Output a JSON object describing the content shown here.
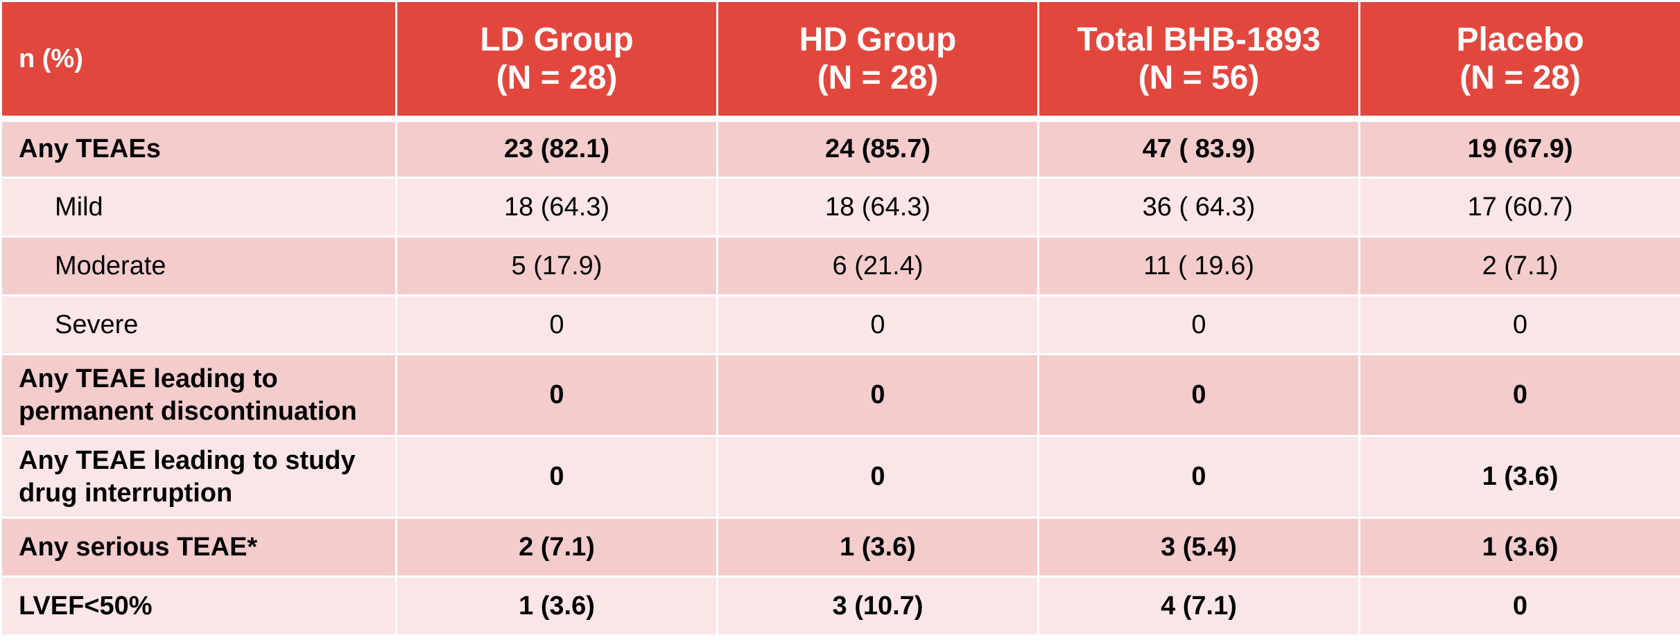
{
  "chart_data": {
    "type": "table",
    "header": {
      "row_label": "n (%)",
      "columns": [
        {
          "name": "LD Group",
          "n": "(N = 28)"
        },
        {
          "name": "HD Group",
          "n": "(N = 28)"
        },
        {
          "name": "Total BHB-1893",
          "n": "(N = 56)"
        },
        {
          "name": "Placebo",
          "n": "(N = 28)"
        }
      ]
    },
    "rows": [
      {
        "label": [
          "Any TEAEs"
        ],
        "values": [
          "23 (82.1)",
          "24 (85.7)",
          "47 ( 83.9)",
          "19 (67.9)"
        ]
      },
      {
        "label": [
          "Mild"
        ],
        "values": [
          "18 (64.3)",
          "18 (64.3)",
          "36 ( 64.3)",
          "17 (60.7)"
        ]
      },
      {
        "label": [
          "Moderate"
        ],
        "values": [
          "5 (17.9)",
          "6 (21.4)",
          "11 ( 19.6)",
          "2 (7.1)"
        ]
      },
      {
        "label": [
          "Severe"
        ],
        "values": [
          "0",
          "0",
          "0",
          "0"
        ]
      },
      {
        "label": [
          "Any TEAE leading to",
          "permanent discontinuation"
        ],
        "values": [
          "0",
          "0",
          "0",
          "0"
        ]
      },
      {
        "label": [
          "Any TEAE leading to study",
          "drug interruption"
        ],
        "values": [
          "0",
          "0",
          "0",
          "1 (3.6)"
        ]
      },
      {
        "label": [
          "Any serious TEAE*"
        ],
        "values": [
          "2 (7.1)",
          "1 (3.6)",
          "3 (5.4)",
          "1 (3.6)"
        ]
      },
      {
        "label": [
          "LVEF<50%"
        ],
        "values": [
          "1 (3.6)",
          "3 (10.7)",
          "4 (7.1)",
          "0"
        ]
      }
    ]
  },
  "colors": {
    "header_bg": "#e2473e",
    "row_dark": "#f4cccc",
    "row_light": "#fae6e6"
  }
}
